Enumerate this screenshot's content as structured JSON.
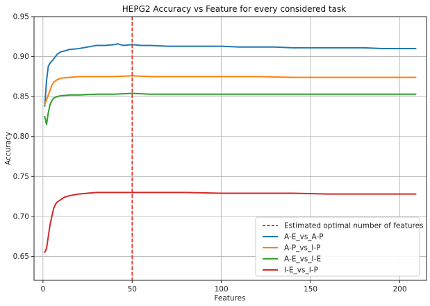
{
  "chart_data": {
    "type": "line",
    "title": "HEPG2 Accuracy vs Feature for every considered task",
    "xlabel": "Features",
    "ylabel": "Accuracy",
    "xlim": [
      -5,
      215
    ],
    "ylim": [
      0.62,
      0.95
    ],
    "xticks": [
      0,
      50,
      100,
      150,
      200
    ],
    "yticks": [
      0.65,
      0.7,
      0.75,
      0.8,
      0.85,
      0.9,
      0.95
    ],
    "ytick_labels": [
      "0.65",
      "0.70",
      "0.75",
      "0.80",
      "0.85",
      "0.90",
      "0.95"
    ],
    "grid": true,
    "legend_position": "lower-right",
    "vline": {
      "x": 50,
      "label": "Estimated optimal number of features",
      "color": "#e8291c",
      "style": "dashed"
    },
    "series": [
      {
        "name": "A-E_vs_A-P",
        "color": "#1f77b4",
        "x": [
          1,
          2,
          3,
          4,
          6,
          8,
          10,
          12,
          15,
          20,
          25,
          30,
          35,
          40,
          42,
          45,
          50,
          55,
          60,
          70,
          80,
          90,
          100,
          110,
          120,
          130,
          140,
          150,
          160,
          170,
          180,
          190,
          200,
          209
        ],
        "y": [
          0.838,
          0.87,
          0.888,
          0.892,
          0.897,
          0.903,
          0.906,
          0.907,
          0.909,
          0.91,
          0.912,
          0.914,
          0.914,
          0.915,
          0.916,
          0.914,
          0.915,
          0.914,
          0.914,
          0.913,
          0.913,
          0.913,
          0.913,
          0.912,
          0.912,
          0.912,
          0.911,
          0.911,
          0.911,
          0.911,
          0.911,
          0.91,
          0.91,
          0.91
        ]
      },
      {
        "name": "A-P_vs_I-P",
        "color": "#ff7f0e",
        "x": [
          1,
          2,
          3,
          4,
          5,
          6,
          8,
          10,
          15,
          20,
          30,
          40,
          50,
          60,
          80,
          100,
          120,
          140,
          160,
          180,
          200,
          209
        ],
        "y": [
          0.84,
          0.846,
          0.852,
          0.858,
          0.864,
          0.868,
          0.871,
          0.873,
          0.874,
          0.875,
          0.875,
          0.875,
          0.876,
          0.875,
          0.875,
          0.875,
          0.875,
          0.874,
          0.874,
          0.874,
          0.874,
          0.874
        ]
      },
      {
        "name": "A-E_vs_I-E",
        "color": "#2ca02c",
        "x": [
          1,
          2,
          3,
          4,
          5,
          6,
          8,
          10,
          15,
          20,
          30,
          40,
          50,
          60,
          80,
          100,
          120,
          140,
          160,
          180,
          200,
          209
        ],
        "y": [
          0.825,
          0.815,
          0.83,
          0.84,
          0.845,
          0.848,
          0.85,
          0.851,
          0.852,
          0.852,
          0.853,
          0.853,
          0.854,
          0.853,
          0.853,
          0.853,
          0.853,
          0.853,
          0.853,
          0.853,
          0.853,
          0.853
        ]
      },
      {
        "name": "I-E_vs_I-P",
        "color": "#d62728",
        "x": [
          1,
          2,
          3,
          4,
          5,
          6,
          7,
          8,
          10,
          12,
          15,
          20,
          25,
          30,
          40,
          50,
          60,
          80,
          100,
          120,
          140,
          160,
          180,
          200,
          209
        ],
        "y": [
          0.655,
          0.66,
          0.675,
          0.69,
          0.7,
          0.71,
          0.715,
          0.718,
          0.721,
          0.724,
          0.726,
          0.728,
          0.729,
          0.73,
          0.73,
          0.73,
          0.73,
          0.73,
          0.729,
          0.729,
          0.729,
          0.728,
          0.728,
          0.728,
          0.728
        ]
      }
    ]
  }
}
